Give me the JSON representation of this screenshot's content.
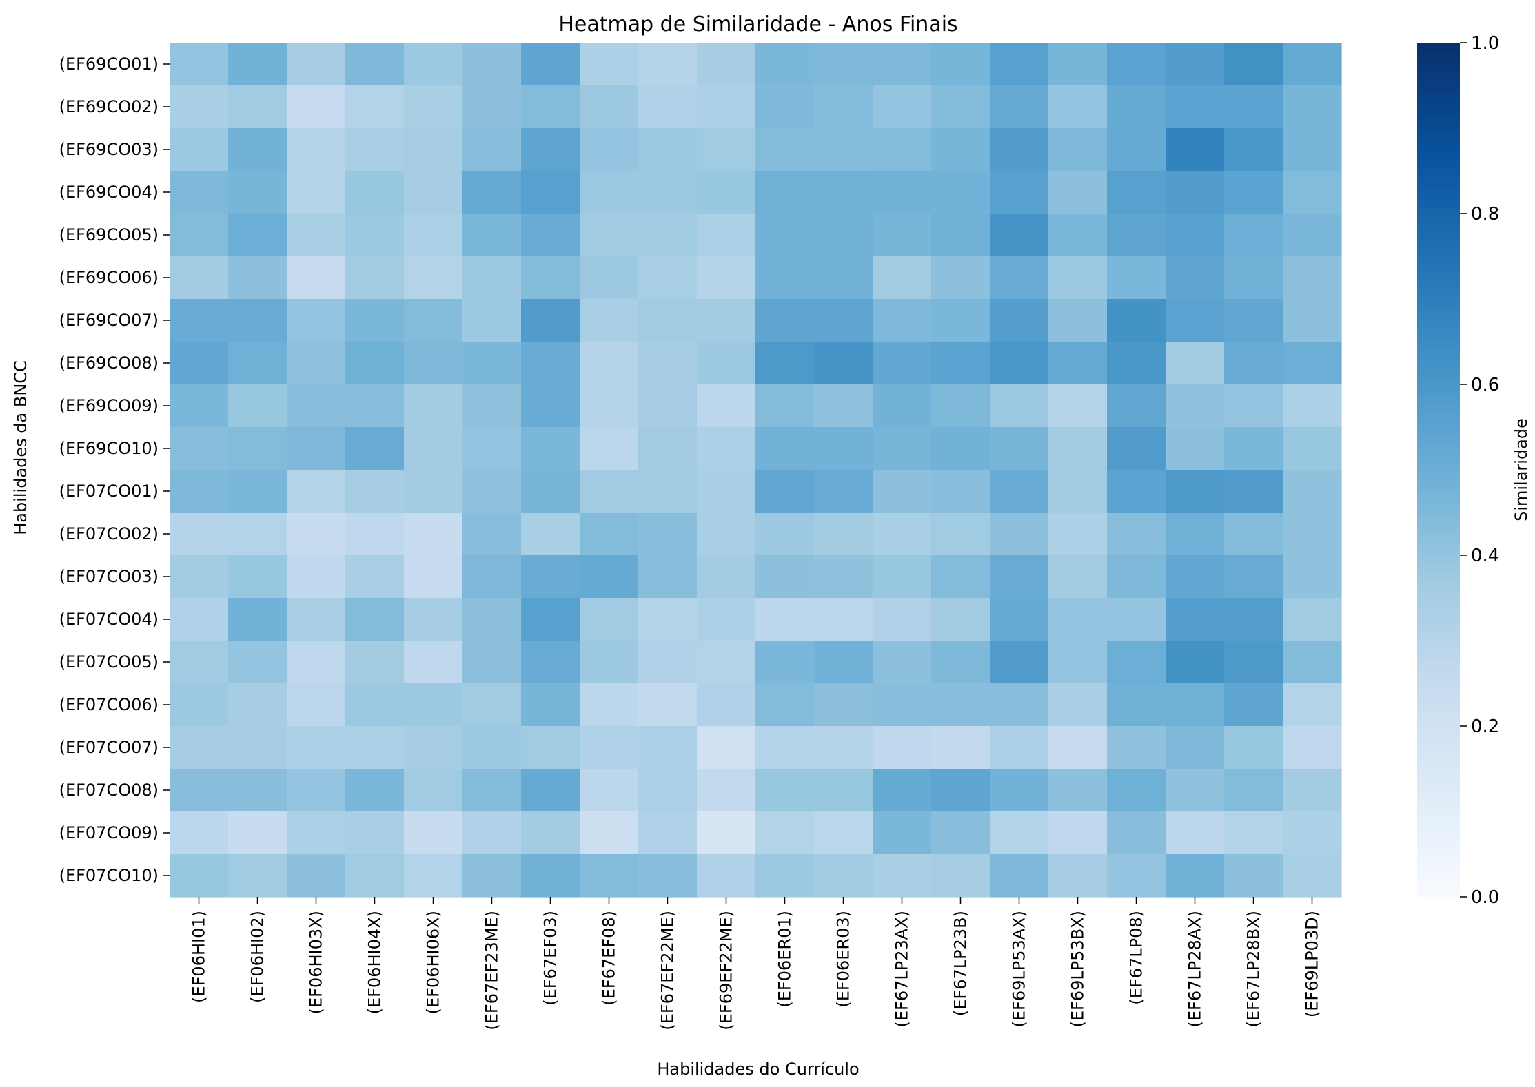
{
  "chart_data": {
    "type": "heatmap",
    "title": "Heatmap de Similaridade - Anos Finais",
    "xlabel": "Habilidades do Currículo",
    "ylabel": "Habilidades da BNCC",
    "colorbar_label": "Similaridade",
    "colorbar_ticks": [
      "0.0",
      "0.2",
      "0.4",
      "0.6",
      "0.8",
      "1.0"
    ],
    "vmin": 0.0,
    "vmax": 1.0,
    "colormap": "Blues",
    "colors": [
      "#f7fbff",
      "#deebf7",
      "#c6dbef",
      "#9ecae1",
      "#6baed6",
      "#4292c6",
      "#2171b5",
      "#08519c",
      "#08306b"
    ],
    "columns": [
      "(EF06HI01)",
      "(EF06HI02)",
      "(EF06HI03X)",
      "(EF06HI04X)",
      "(EF06HI06X)",
      "(EF67EF23ME)",
      "(EF67EF03)",
      "(EF67EF08)",
      "(EF67EF22ME)",
      "(EF69EF22ME)",
      "(EF06ER01)",
      "(EF06ER03)",
      "(EF67LP23AX)",
      "(EF67LP23B)",
      "(EF69LP53AX)",
      "(EF69LP53BX)",
      "(EF67LP08)",
      "(EF67LP28AX)",
      "(EF67LP28BX)",
      "(EF69LP03D)"
    ],
    "rows": [
      "(EF69CO01)",
      "(EF69CO02)",
      "(EF69CO03)",
      "(EF69CO04)",
      "(EF69CO05)",
      "(EF69CO06)",
      "(EF69CO07)",
      "(EF69CO08)",
      "(EF69CO09)",
      "(EF69CO10)",
      "(EF07CO01)",
      "(EF07CO02)",
      "(EF07CO03)",
      "(EF07CO04)",
      "(EF07CO05)",
      "(EF07CO06)",
      "(EF07CO07)",
      "(EF07CO08)",
      "(EF07CO09)",
      "(EF07CO10)"
    ],
    "values": [
      [
        0.4,
        0.48,
        0.35,
        0.45,
        0.38,
        0.42,
        0.54,
        0.33,
        0.3,
        0.35,
        0.46,
        0.45,
        0.45,
        0.47,
        0.56,
        0.47,
        0.55,
        0.58,
        0.63,
        0.52
      ],
      [
        0.34,
        0.37,
        0.25,
        0.31,
        0.34,
        0.42,
        0.44,
        0.38,
        0.32,
        0.33,
        0.45,
        0.44,
        0.4,
        0.44,
        0.52,
        0.4,
        0.52,
        0.55,
        0.55,
        0.47
      ],
      [
        0.38,
        0.48,
        0.3,
        0.34,
        0.35,
        0.43,
        0.54,
        0.4,
        0.38,
        0.37,
        0.44,
        0.44,
        0.44,
        0.47,
        0.58,
        0.45,
        0.52,
        0.68,
        0.6,
        0.47
      ],
      [
        0.45,
        0.47,
        0.3,
        0.39,
        0.35,
        0.52,
        0.56,
        0.38,
        0.38,
        0.39,
        0.49,
        0.49,
        0.48,
        0.48,
        0.56,
        0.42,
        0.56,
        0.58,
        0.55,
        0.44
      ],
      [
        0.44,
        0.5,
        0.34,
        0.38,
        0.33,
        0.46,
        0.51,
        0.37,
        0.37,
        0.33,
        0.48,
        0.48,
        0.47,
        0.49,
        0.61,
        0.46,
        0.54,
        0.56,
        0.5,
        0.46
      ],
      [
        0.36,
        0.42,
        0.25,
        0.36,
        0.31,
        0.38,
        0.44,
        0.38,
        0.34,
        0.3,
        0.48,
        0.48,
        0.36,
        0.42,
        0.51,
        0.38,
        0.46,
        0.54,
        0.48,
        0.42
      ],
      [
        0.51,
        0.51,
        0.4,
        0.46,
        0.44,
        0.38,
        0.58,
        0.34,
        0.37,
        0.36,
        0.54,
        0.54,
        0.45,
        0.46,
        0.57,
        0.42,
        0.62,
        0.55,
        0.53,
        0.42
      ],
      [
        0.53,
        0.49,
        0.41,
        0.49,
        0.45,
        0.46,
        0.51,
        0.3,
        0.35,
        0.38,
        0.59,
        0.61,
        0.53,
        0.55,
        0.6,
        0.52,
        0.6,
        0.36,
        0.51,
        0.5
      ],
      [
        0.46,
        0.39,
        0.43,
        0.43,
        0.36,
        0.41,
        0.51,
        0.3,
        0.35,
        0.28,
        0.44,
        0.41,
        0.48,
        0.45,
        0.38,
        0.31,
        0.53,
        0.41,
        0.4,
        0.33
      ],
      [
        0.43,
        0.44,
        0.45,
        0.51,
        0.36,
        0.4,
        0.46,
        0.28,
        0.36,
        0.33,
        0.48,
        0.48,
        0.47,
        0.48,
        0.47,
        0.36,
        0.58,
        0.42,
        0.46,
        0.39
      ],
      [
        0.45,
        0.46,
        0.31,
        0.35,
        0.36,
        0.41,
        0.47,
        0.37,
        0.37,
        0.34,
        0.53,
        0.51,
        0.42,
        0.43,
        0.51,
        0.36,
        0.55,
        0.59,
        0.58,
        0.41
      ],
      [
        0.3,
        0.31,
        0.24,
        0.27,
        0.24,
        0.43,
        0.34,
        0.44,
        0.43,
        0.34,
        0.38,
        0.36,
        0.34,
        0.37,
        0.42,
        0.33,
        0.43,
        0.49,
        0.44,
        0.41
      ],
      [
        0.36,
        0.39,
        0.27,
        0.34,
        0.25,
        0.45,
        0.51,
        0.52,
        0.43,
        0.36,
        0.42,
        0.41,
        0.39,
        0.44,
        0.51,
        0.36,
        0.45,
        0.53,
        0.51,
        0.41
      ],
      [
        0.32,
        0.48,
        0.34,
        0.44,
        0.35,
        0.42,
        0.56,
        0.37,
        0.31,
        0.33,
        0.28,
        0.29,
        0.32,
        0.36,
        0.52,
        0.4,
        0.4,
        0.57,
        0.57,
        0.37
      ],
      [
        0.37,
        0.4,
        0.27,
        0.36,
        0.27,
        0.42,
        0.51,
        0.38,
        0.32,
        0.31,
        0.46,
        0.48,
        0.42,
        0.45,
        0.58,
        0.4,
        0.5,
        0.62,
        0.59,
        0.44
      ],
      [
        0.38,
        0.35,
        0.28,
        0.38,
        0.38,
        0.37,
        0.47,
        0.28,
        0.26,
        0.32,
        0.44,
        0.42,
        0.43,
        0.43,
        0.43,
        0.34,
        0.49,
        0.49,
        0.54,
        0.31
      ],
      [
        0.35,
        0.35,
        0.33,
        0.33,
        0.35,
        0.38,
        0.37,
        0.32,
        0.33,
        0.21,
        0.31,
        0.3,
        0.27,
        0.26,
        0.33,
        0.25,
        0.41,
        0.45,
        0.39,
        0.27
      ],
      [
        0.43,
        0.43,
        0.4,
        0.46,
        0.37,
        0.44,
        0.52,
        0.28,
        0.33,
        0.26,
        0.39,
        0.39,
        0.52,
        0.54,
        0.48,
        0.42,
        0.49,
        0.41,
        0.44,
        0.36
      ],
      [
        0.28,
        0.24,
        0.33,
        0.34,
        0.24,
        0.32,
        0.36,
        0.22,
        0.32,
        0.17,
        0.31,
        0.29,
        0.46,
        0.43,
        0.31,
        0.27,
        0.43,
        0.28,
        0.31,
        0.33
      ],
      [
        0.39,
        0.37,
        0.42,
        0.37,
        0.31,
        0.42,
        0.48,
        0.44,
        0.43,
        0.32,
        0.38,
        0.36,
        0.34,
        0.35,
        0.45,
        0.35,
        0.4,
        0.48,
        0.42,
        0.34
      ]
    ]
  }
}
